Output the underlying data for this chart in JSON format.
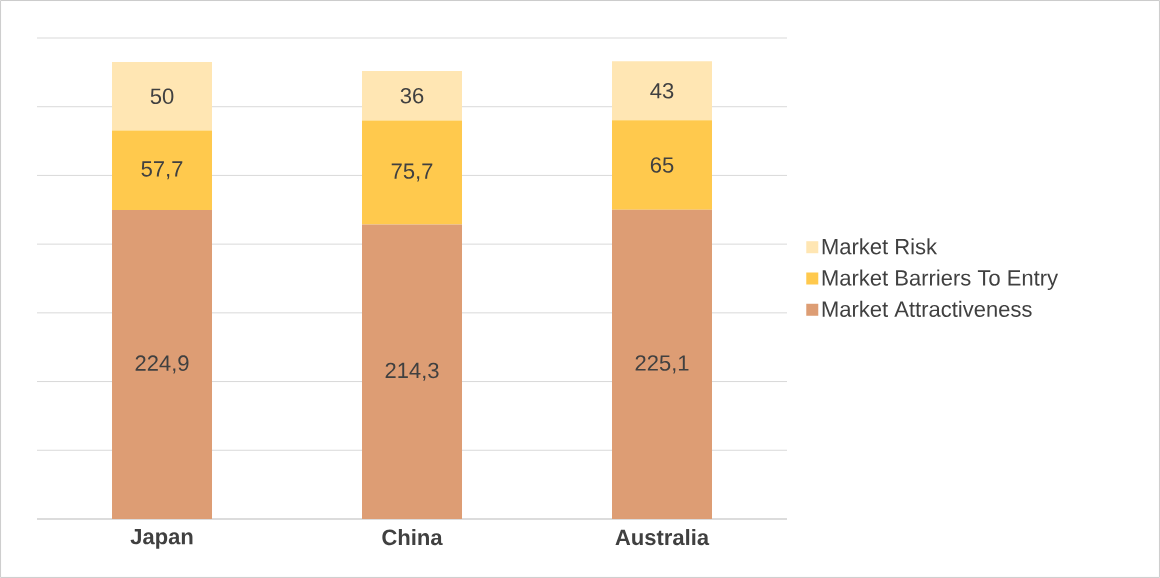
{
  "chart_data": {
    "type": "bar",
    "stacked": true,
    "categories": [
      "Japan",
      "China",
      "Australia"
    ],
    "series": [
      {
        "name": "Market Attractiveness",
        "color": "#dd9d74",
        "values": [
          224.9,
          214.3,
          225.1
        ],
        "value_labels": [
          "224,9",
          "214,3",
          "225,1"
        ]
      },
      {
        "name": "Market Barriers To Entry",
        "color": "#ffc94d",
        "values": [
          57.7,
          75.7,
          65
        ],
        "value_labels": [
          "57,7",
          "75,7",
          "65"
        ]
      },
      {
        "name": "Market Risk",
        "color": "#ffe6b3",
        "values": [
          50,
          36,
          43
        ],
        "value_labels": [
          "50",
          "36",
          "43"
        ]
      }
    ],
    "ylim": [
      0,
      350
    ],
    "yticks": [
      {
        "value": 0,
        "label": null
      },
      {
        "value": 50,
        "label": null
      },
      {
        "value": 100,
        "label": null
      },
      {
        "value": 150,
        "label": null
      },
      {
        "value": 200,
        "label": null
      },
      {
        "value": 250,
        "label": null
      },
      {
        "value": 300,
        "label": null
      },
      {
        "value": 350,
        "label": null
      }
    ],
    "tick_labels": "x",
    "grid": "y",
    "legend": "right"
  }
}
